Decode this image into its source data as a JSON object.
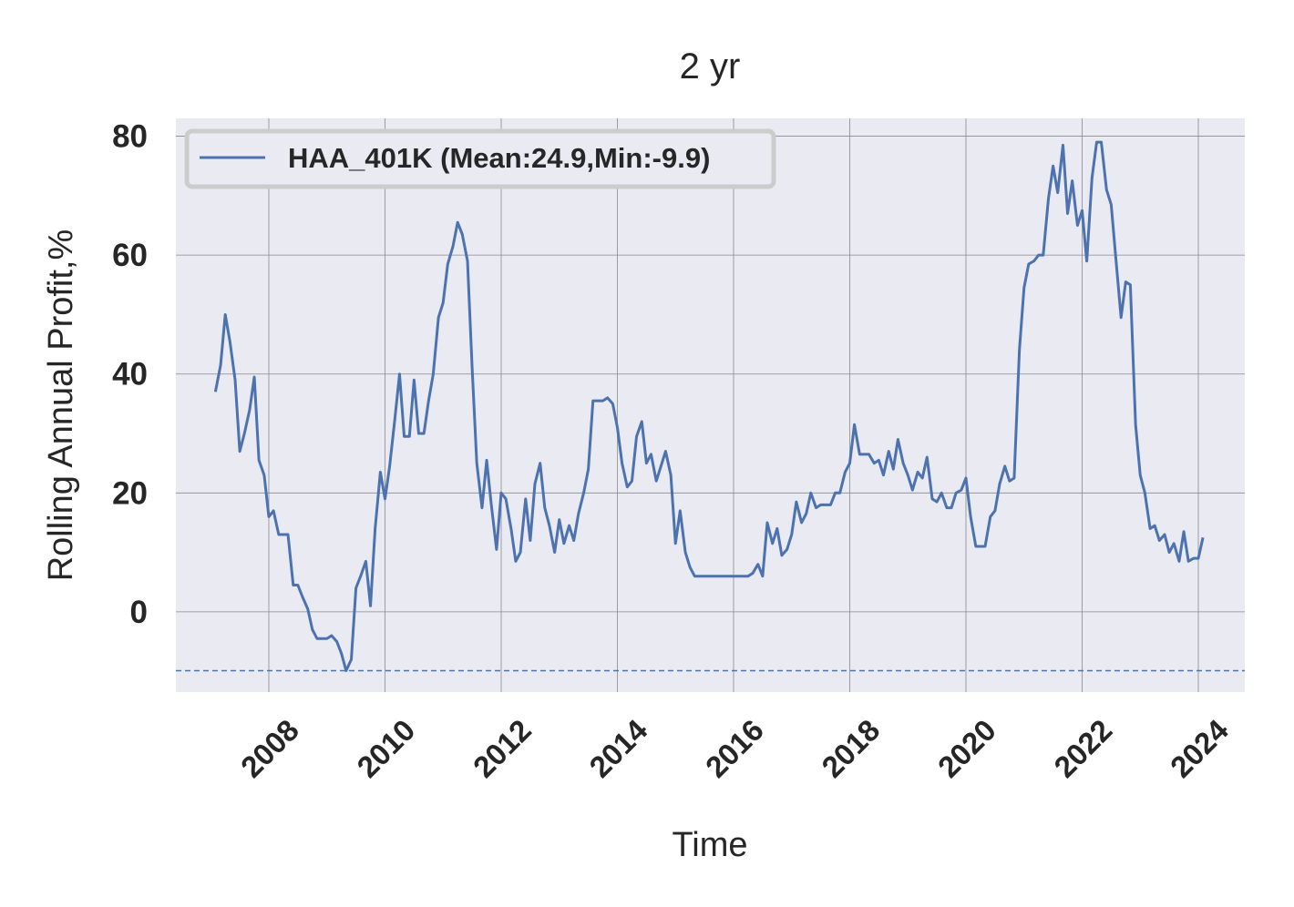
{
  "chart_data": {
    "type": "line",
    "title": "2 yr",
    "xlabel": "Time",
    "ylabel": "Rolling Annual Profit,%",
    "xlim": [
      2006.4,
      2024.8
    ],
    "ylim": [
      -13.5,
      83.0
    ],
    "x_ticks": [
      "2008",
      "2010",
      "2012",
      "2014",
      "2016",
      "2018",
      "2020",
      "2022",
      "2024"
    ],
    "y_ticks": [
      "80",
      "60",
      "40",
      "20",
      "0"
    ],
    "grid": true,
    "legend_position": "top-left",
    "reference_line": {
      "y": -9.9,
      "style": "dashed"
    },
    "series": [
      {
        "name": "HAA_401K (Mean:24.9,Min:-9.9)",
        "color": "#4c72b0",
        "points": [
          [
            2007.08,
            37
          ],
          [
            2007.17,
            41.5
          ],
          [
            2007.25,
            50
          ],
          [
            2007.33,
            45.5
          ],
          [
            2007.42,
            39
          ],
          [
            2007.5,
            27
          ],
          [
            2007.58,
            30
          ],
          [
            2007.67,
            34
          ],
          [
            2007.75,
            39.5
          ],
          [
            2007.83,
            25.5
          ],
          [
            2007.92,
            23
          ],
          [
            2008.0,
            16
          ],
          [
            2008.08,
            17
          ],
          [
            2008.17,
            13
          ],
          [
            2008.25,
            13
          ],
          [
            2008.33,
            13
          ],
          [
            2008.42,
            4.5
          ],
          [
            2008.5,
            4.5
          ],
          [
            2008.58,
            2.5
          ],
          [
            2008.67,
            0.5
          ],
          [
            2008.75,
            -3
          ],
          [
            2008.83,
            -4.5
          ],
          [
            2008.92,
            -4.5
          ],
          [
            2009.0,
            -4.5
          ],
          [
            2009.08,
            -4
          ],
          [
            2009.17,
            -5
          ],
          [
            2009.25,
            -7
          ],
          [
            2009.33,
            -9.9
          ],
          [
            2009.42,
            -8
          ],
          [
            2009.5,
            4
          ],
          [
            2009.58,
            6
          ],
          [
            2009.67,
            8.5
          ],
          [
            2009.75,
            1
          ],
          [
            2009.83,
            14
          ],
          [
            2009.92,
            23.5
          ],
          [
            2010.0,
            19
          ],
          [
            2010.08,
            24.5
          ],
          [
            2010.17,
            32.5
          ],
          [
            2010.25,
            40
          ],
          [
            2010.33,
            29.5
          ],
          [
            2010.42,
            29.5
          ],
          [
            2010.5,
            39
          ],
          [
            2010.58,
            30
          ],
          [
            2010.67,
            30
          ],
          [
            2010.75,
            35.5
          ],
          [
            2010.83,
            40
          ],
          [
            2010.92,
            49.5
          ],
          [
            2011.0,
            52
          ],
          [
            2011.08,
            58.5
          ],
          [
            2011.17,
            61.5
          ],
          [
            2011.25,
            65.5
          ],
          [
            2011.33,
            63.5
          ],
          [
            2011.42,
            59
          ],
          [
            2011.5,
            41
          ],
          [
            2011.58,
            25
          ],
          [
            2011.67,
            17.5
          ],
          [
            2011.75,
            25.5
          ],
          [
            2011.83,
            18
          ],
          [
            2011.92,
            10.5
          ],
          [
            2012.0,
            20
          ],
          [
            2012.08,
            19
          ],
          [
            2012.17,
            14
          ],
          [
            2012.25,
            8.5
          ],
          [
            2012.33,
            10
          ],
          [
            2012.42,
            19
          ],
          [
            2012.5,
            12
          ],
          [
            2012.58,
            21.5
          ],
          [
            2012.67,
            25
          ],
          [
            2012.75,
            17.5
          ],
          [
            2012.83,
            14.5
          ],
          [
            2012.92,
            10
          ],
          [
            2013.0,
            15.5
          ],
          [
            2013.08,
            11.5
          ],
          [
            2013.17,
            14.5
          ],
          [
            2013.25,
            12
          ],
          [
            2013.33,
            16.5
          ],
          [
            2013.42,
            20
          ],
          [
            2013.5,
            24
          ],
          [
            2013.58,
            35.5
          ],
          [
            2013.67,
            35.5
          ],
          [
            2013.75,
            35.5
          ],
          [
            2013.83,
            36
          ],
          [
            2013.92,
            35
          ],
          [
            2014.0,
            31
          ],
          [
            2014.08,
            25
          ],
          [
            2014.17,
            21
          ],
          [
            2014.25,
            22
          ],
          [
            2014.33,
            29.5
          ],
          [
            2014.42,
            32
          ],
          [
            2014.5,
            25
          ],
          [
            2014.58,
            26.5
          ],
          [
            2014.67,
            22
          ],
          [
            2014.75,
            24.5
          ],
          [
            2014.83,
            27
          ],
          [
            2014.92,
            23
          ],
          [
            2015.0,
            11.5
          ],
          [
            2015.08,
            17
          ],
          [
            2015.17,
            10
          ],
          [
            2015.25,
            7.5
          ],
          [
            2015.33,
            6
          ],
          [
            2015.5,
            6
          ],
          [
            2015.75,
            6
          ],
          [
            2016.0,
            6
          ],
          [
            2016.25,
            6
          ],
          [
            2016.33,
            6.5
          ],
          [
            2016.42,
            8
          ],
          [
            2016.5,
            6
          ],
          [
            2016.58,
            15
          ],
          [
            2016.67,
            11.5
          ],
          [
            2016.75,
            14
          ],
          [
            2016.83,
            9.5
          ],
          [
            2016.92,
            10.5
          ],
          [
            2017.0,
            13
          ],
          [
            2017.08,
            18.5
          ],
          [
            2017.17,
            15
          ],
          [
            2017.25,
            16.5
          ],
          [
            2017.33,
            20
          ],
          [
            2017.42,
            17.5
          ],
          [
            2017.5,
            18
          ],
          [
            2017.58,
            18
          ],
          [
            2017.67,
            18
          ],
          [
            2017.75,
            20
          ],
          [
            2017.83,
            20
          ],
          [
            2017.92,
            23.5
          ],
          [
            2018.0,
            25
          ],
          [
            2018.08,
            31.5
          ],
          [
            2018.17,
            26.5
          ],
          [
            2018.25,
            26.5
          ],
          [
            2018.33,
            26.5
          ],
          [
            2018.42,
            25
          ],
          [
            2018.5,
            25.5
          ],
          [
            2018.58,
            23
          ],
          [
            2018.67,
            27
          ],
          [
            2018.75,
            24
          ],
          [
            2018.83,
            29
          ],
          [
            2018.92,
            25
          ],
          [
            2019.0,
            23
          ],
          [
            2019.08,
            20.5
          ],
          [
            2019.17,
            23.5
          ],
          [
            2019.25,
            22.5
          ],
          [
            2019.33,
            26
          ],
          [
            2019.42,
            19
          ],
          [
            2019.5,
            18.5
          ],
          [
            2019.58,
            20
          ],
          [
            2019.67,
            17.5
          ],
          [
            2019.75,
            17.5
          ],
          [
            2019.83,
            20
          ],
          [
            2019.92,
            20.5
          ],
          [
            2020.0,
            22.5
          ],
          [
            2020.08,
            16
          ],
          [
            2020.17,
            11
          ],
          [
            2020.25,
            11
          ],
          [
            2020.33,
            11
          ],
          [
            2020.42,
            16
          ],
          [
            2020.5,
            17
          ],
          [
            2020.58,
            21.5
          ],
          [
            2020.67,
            24.5
          ],
          [
            2020.75,
            22
          ],
          [
            2020.83,
            22.5
          ],
          [
            2020.92,
            44
          ],
          [
            2021.0,
            54.5
          ],
          [
            2021.08,
            58.5
          ],
          [
            2021.17,
            59
          ],
          [
            2021.25,
            60
          ],
          [
            2021.33,
            60
          ],
          [
            2021.42,
            69.5
          ],
          [
            2021.5,
            75
          ],
          [
            2021.58,
            70.5
          ],
          [
            2021.67,
            78.5
          ],
          [
            2021.75,
            67
          ],
          [
            2021.83,
            72.5
          ],
          [
            2021.92,
            65
          ],
          [
            2022.0,
            67.5
          ],
          [
            2022.08,
            59
          ],
          [
            2022.17,
            73
          ],
          [
            2022.25,
            79
          ],
          [
            2022.33,
            79
          ],
          [
            2022.42,
            71
          ],
          [
            2022.5,
            68.5
          ],
          [
            2022.58,
            59.5
          ],
          [
            2022.67,
            49.5
          ],
          [
            2022.75,
            55.5
          ],
          [
            2022.83,
            55
          ],
          [
            2022.92,
            31.5
          ],
          [
            2023.0,
            23
          ],
          [
            2023.08,
            20
          ],
          [
            2023.17,
            14
          ],
          [
            2023.25,
            14.5
          ],
          [
            2023.33,
            12
          ],
          [
            2023.42,
            13
          ],
          [
            2023.5,
            10
          ],
          [
            2023.58,
            11.5
          ],
          [
            2023.67,
            8.5
          ],
          [
            2023.75,
            13.5
          ],
          [
            2023.83,
            8.5
          ],
          [
            2023.92,
            9
          ],
          [
            2024.0,
            9
          ],
          [
            2024.08,
            12.5
          ]
        ]
      }
    ]
  }
}
